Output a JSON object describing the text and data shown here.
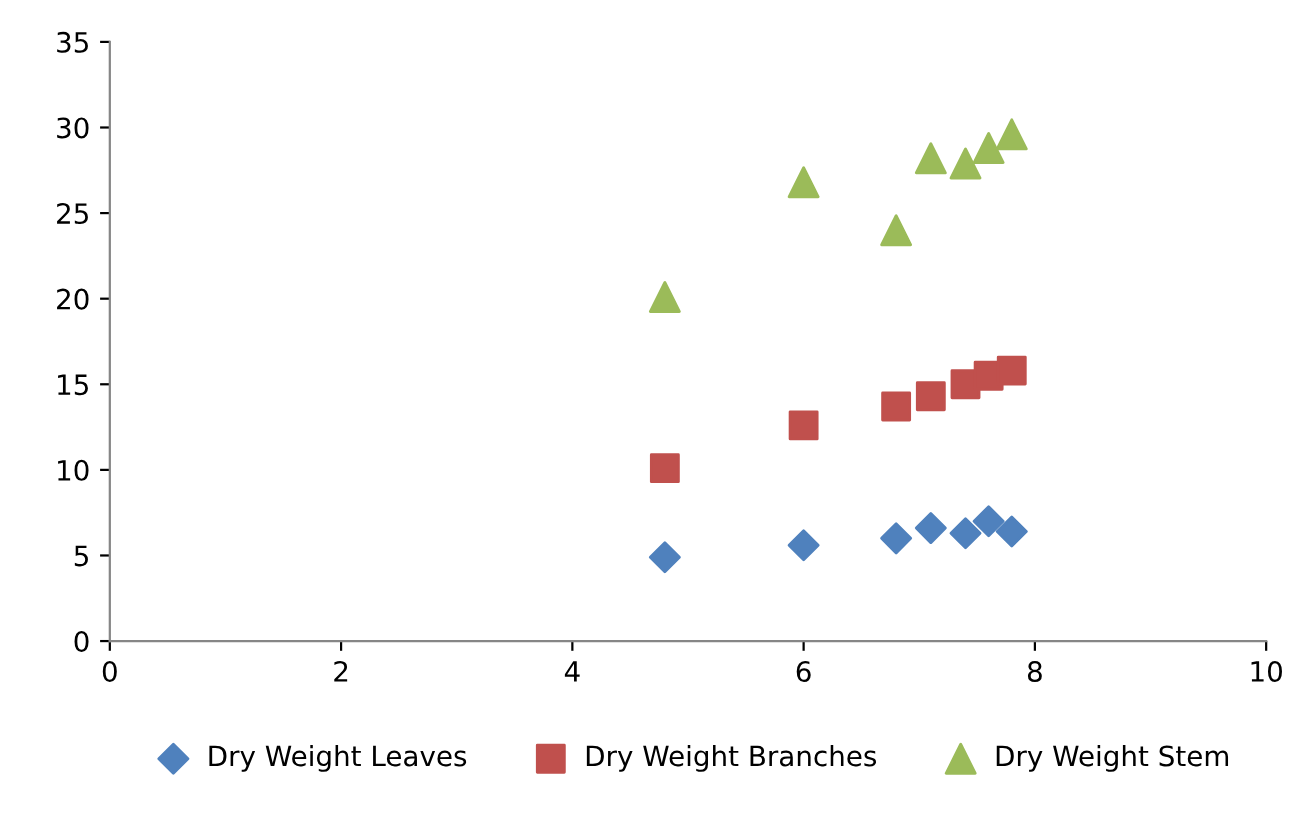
{
  "chart_data": {
    "type": "scatter",
    "x": [
      4.8,
      6.0,
      6.8,
      7.1,
      7.4,
      7.6,
      7.8
    ],
    "series": [
      {
        "name": "Dry Weight Leaves",
        "color": "#4f81bd",
        "marker": "diamond",
        "values": [
          4.9,
          5.6,
          6.0,
          6.6,
          6.3,
          7.0,
          6.4
        ]
      },
      {
        "name": "Dry Weight Branches",
        "color": "#c0504d",
        "marker": "square",
        "values": [
          10.1,
          12.6,
          13.7,
          14.3,
          15.0,
          15.5,
          15.8
        ]
      },
      {
        "name": "Dry Weight Stem",
        "color": "#9bbb59",
        "marker": "triangle",
        "values": [
          20.1,
          26.8,
          24.0,
          28.2,
          27.9,
          28.8,
          29.6
        ]
      }
    ],
    "xlim": [
      0,
      10
    ],
    "xticks": [
      0,
      2,
      4,
      6,
      8,
      10
    ],
    "ylim": [
      0,
      35
    ],
    "yticks": [
      0,
      5,
      10,
      15,
      20,
      25,
      30,
      35
    ],
    "grid": false,
    "legend": "bottom"
  }
}
